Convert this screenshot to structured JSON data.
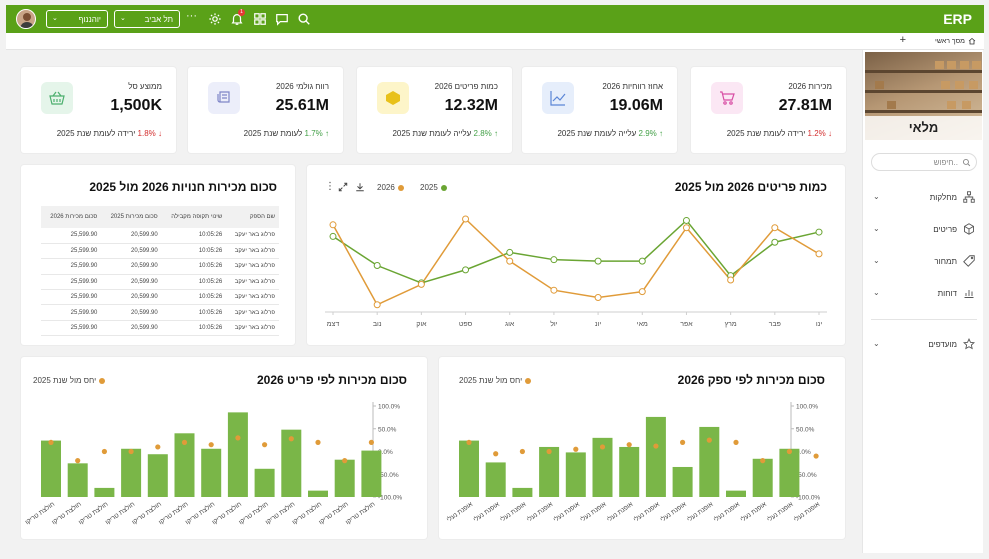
{
  "header": {
    "brand": "ERP",
    "city_select": "תל אביב",
    "user_select": "יוהננוף",
    "notif_count": "1"
  },
  "tabs": {
    "home_label": "מסך ראשי"
  },
  "sidebar": {
    "banner_title": "מלאי",
    "search_placeholder": "חיפוש..",
    "items": [
      {
        "label": "מחלקות",
        "icon": "hierarchy-icon"
      },
      {
        "label": "פריטים",
        "icon": "cube-icon"
      },
      {
        "label": "תמחור",
        "icon": "tag-icon"
      },
      {
        "label": "דוחות",
        "icon": "bar-chart-icon"
      }
    ],
    "favorites_label": "מועדפים"
  },
  "kpis": [
    {
      "label": "מכירות 2026",
      "value": "27.81M",
      "arrow": "↓",
      "delta": "1.2%",
      "trend": "down",
      "note": "ירידה לעומת שנת 2025",
      "icon": "cart-icon",
      "icon_bg": "#fbe7f4",
      "icon_color": "#d84ea4"
    },
    {
      "label": "אחוז רווחיות 2026",
      "value": "19.06M",
      "arrow": "↑",
      "delta": "2.9%",
      "trend": "up",
      "note": "עלייה לעומת שנת 2025",
      "icon": "line-chart-icon",
      "icon_bg": "#e6eefb",
      "icon_color": "#5b86d6"
    },
    {
      "label": "כמות פריטים 2026",
      "value": "12.32M",
      "arrow": "↑",
      "delta": "2.8%",
      "trend": "up",
      "note": "עלייה לעומת שנת 2025",
      "icon": "box-icon",
      "icon_bg": "#fdf5c9",
      "icon_color": "#e8c11a"
    },
    {
      "label": "רווח גולמי 2026",
      "value": "25.61M",
      "arrow": "↑",
      "delta": "1.7%",
      "trend": "up",
      "note": "לעומת שנת 2025",
      "icon": "scroll-icon",
      "icon_bg": "#eceefa",
      "icon_color": "#7f86c8"
    },
    {
      "label": "ממוצע סל",
      "value": "1,500K",
      "arrow": "↓",
      "delta": "1.8%",
      "trend": "down",
      "note": "ירידה לעומת שנת 2025",
      "icon": "basket-icon",
      "icon_bg": "#e5f5ea",
      "icon_color": "#4caf6e"
    }
  ],
  "colors": {
    "green": "#6aa533",
    "orange": "#e09b39",
    "bar_green": "#7ab648"
  },
  "line_chart": {
    "title": "כמות פריטים 2026 מול 2025",
    "chart_data": {
      "type": "line",
      "categories": [
        "ינו",
        "פבר",
        "מרץ",
        "אפר",
        "מאי",
        "יונ",
        "יול",
        "אוג",
        "ספט",
        "אוק",
        "נוב",
        "דצמ"
      ],
      "series": [
        {
          "name": "2025",
          "color": "#6aa533",
          "values": [
            55,
            48,
            25,
            63,
            35,
            35,
            36,
            41,
            29,
            20,
            32,
            52
          ]
        },
        {
          "name": "2026",
          "color": "#e09b39",
          "values": [
            40,
            58,
            22,
            58,
            14,
            10,
            15,
            35,
            64,
            19,
            5,
            60
          ]
        }
      ],
      "ylim": [
        0,
        75
      ]
    }
  },
  "store_table": {
    "title": "סכום מכירות חנויות 2026 מול 2025",
    "columns": [
      "שם הספק",
      "שינוי תקופה מקבילה",
      "סכום מכירות 2025",
      "סכום מכירות 2026"
    ],
    "rows": [
      [
        "פרלוג באר יעקב",
        "10:05:26",
        "20,599.90",
        "25,599.90"
      ],
      [
        "פרלוג באר יעקב",
        "10:05:26",
        "20,599.90",
        "25,599.90"
      ],
      [
        "פרלוג באר יעקב",
        "10:05:26",
        "20,599.90",
        "25,599.90"
      ],
      [
        "פרלוג באר יעקב",
        "10:05:26",
        "20,599.90",
        "25,599.90"
      ],
      [
        "פרלוג באר יעקב",
        "10:05:26",
        "20,599.90",
        "25,599.90"
      ],
      [
        "פרלוג באר יעקב",
        "10:05:26",
        "20,599.90",
        "25,599.90"
      ],
      [
        "פרלוג באר יעקב",
        "10:05:26",
        "20,599.90",
        "25,599.90"
      ]
    ]
  },
  "icon_labels": {
    "download": "download-icon",
    "expand": "expand-icon",
    "more": "more-vertical-icon"
  },
  "bar_supplier": {
    "title": "סכום מכירות לפי ספק 2026",
    "legend": "יחס מול שנת 2025",
    "chart_data": {
      "type": "bar",
      "categories": [
        "אופנת נעלי",
        "אופנת נעלי",
        "אופנת נעלי",
        "אופנת נעלי",
        "אופנת נעלי",
        "אופנת נעלי",
        "אופנת נעלי",
        "אופנת נעלי",
        "אופנת נעלי",
        "אופנת נעלי",
        "אופנת נעלי",
        "אופנת נעלי",
        "אופנת נעלי",
        "אופנת נעלי"
      ],
      "values": [
        0,
        0,
        0,
        0,
        0,
        0,
        0,
        0,
        0,
        0,
        0,
        0,
        0,
        0
      ],
      "bar_values": [
        62,
        38,
        10,
        55,
        49,
        65,
        55,
        88,
        33,
        77,
        7,
        42,
        53,
        0
      ],
      "ratio_values": [
        20,
        -5,
        0,
        0,
        5,
        10,
        15,
        12,
        20,
        25,
        20,
        -20,
        0,
        -10
      ],
      "y2_ticks": [
        "100.0%",
        "50.0%",
        "0.0%",
        "-50.0%",
        "-100.0%"
      ],
      "ylim": [
        0,
        100
      ],
      "y2lim": [
        -100,
        100
      ]
    }
  },
  "bar_item": {
    "title": "סכום מכירות לפי פריט 2026",
    "legend": "יחס מול שנת 2025",
    "chart_data": {
      "type": "bar",
      "categories": [
        "חולצת טריקו",
        "חולצת טריקו",
        "חולצת טריקו",
        "חולצת טריקו",
        "חולצת טריקו",
        "חולצת טריקו",
        "חולצת טריקו",
        "חולצת טריקו",
        "חולצת טריקו",
        "חולצת טריקו",
        "חולצת טריקו",
        "חולצת טריקו",
        "חולצת טריקו"
      ],
      "bar_values": [
        62,
        37,
        10,
        53,
        47,
        70,
        53,
        93,
        31,
        74,
        7,
        41,
        51
      ],
      "ratio_values": [
        20,
        -20,
        0,
        0,
        10,
        20,
        15,
        30,
        15,
        28,
        20,
        -20,
        20
      ],
      "y2_ticks": [
        "100.0%",
        "50.0%",
        "0.0%",
        "-50.0%",
        "-100.0%"
      ],
      "ylim": [
        0,
        100
      ],
      "y2lim": [
        -100,
        100
      ]
    }
  }
}
